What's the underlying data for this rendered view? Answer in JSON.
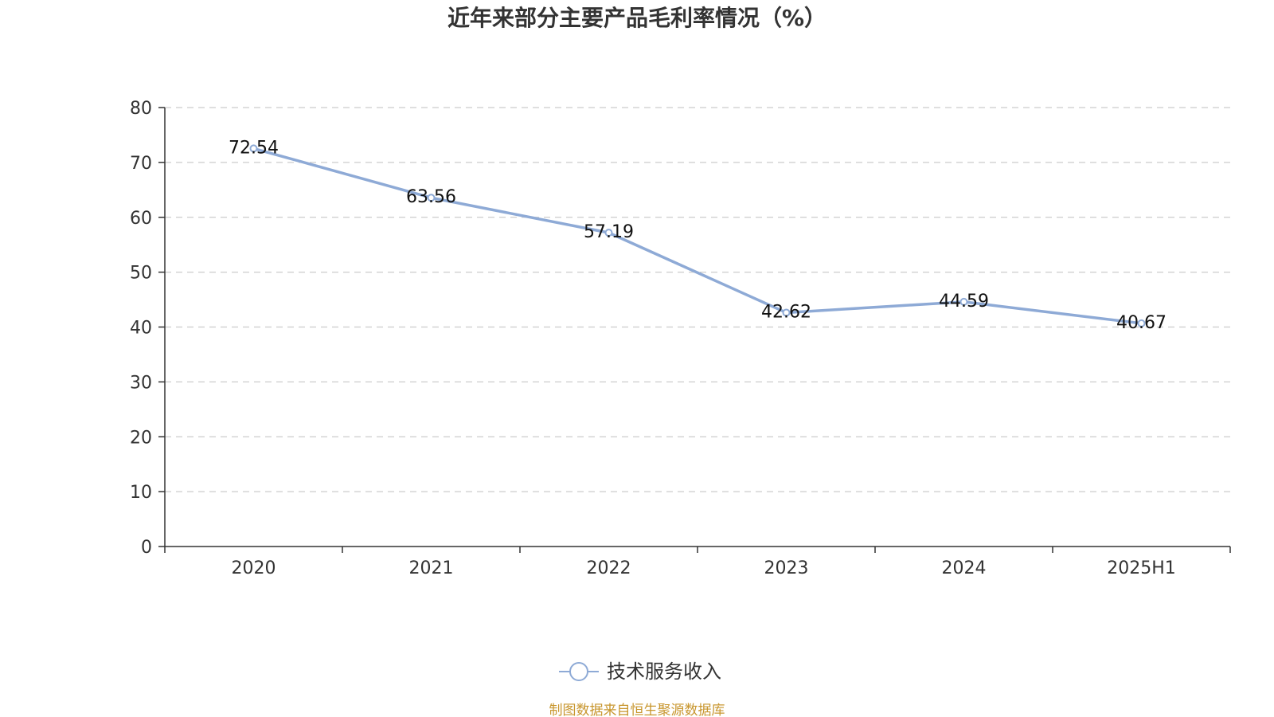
{
  "chart_data": {
    "type": "line",
    "title": "近年来部分主要产品毛利率情况（%）",
    "categories": [
      "2020",
      "2021",
      "2022",
      "2023",
      "2024",
      "2025H1"
    ],
    "series": [
      {
        "name": "技术服务收入",
        "values": [
          72.54,
          63.56,
          57.19,
          42.62,
          44.59,
          40.67
        ],
        "labels": [
          "72.54",
          "63.56",
          "57.19",
          "42.62",
          "44.59",
          "40.67"
        ],
        "color": "#8eaad6"
      }
    ],
    "ylim": [
      0,
      80
    ],
    "yticks": [
      0,
      10,
      20,
      30,
      40,
      50,
      60,
      70,
      80
    ],
    "ytick_labels": [
      "0",
      "10",
      "20",
      "30",
      "40",
      "50",
      "60",
      "70",
      "80"
    ],
    "grid": true,
    "legend_position": "bottom-center"
  },
  "source_note": "制图数据来自恒生聚源数据库",
  "colors": {
    "line": "#8eaad6",
    "grid": "#cccccc",
    "axis": "#333333",
    "source": "#c8962e"
  }
}
